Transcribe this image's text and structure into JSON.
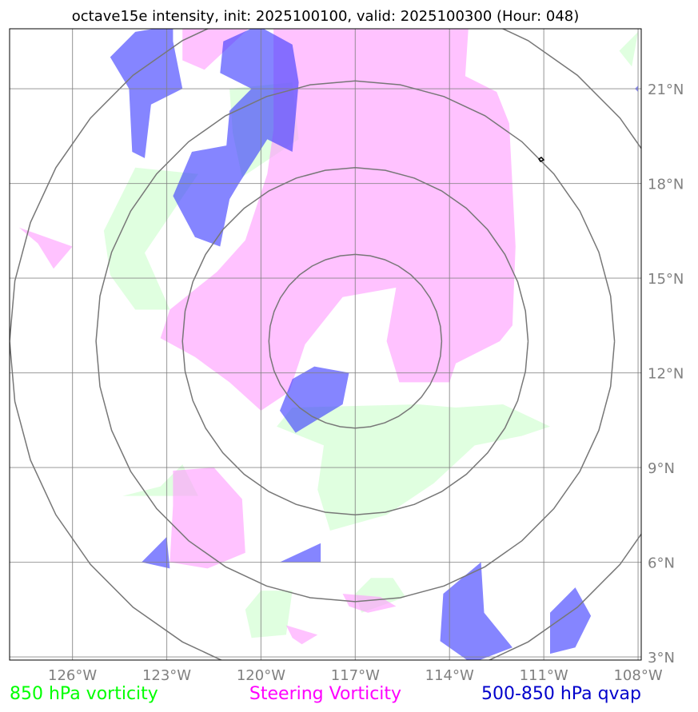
{
  "chart_data": {
    "type": "map",
    "title": "octave15e intensity, init: 2025100100, valid: 2025100300 (Hour: 048)",
    "lon_range": [
      -128.0,
      -107.9
    ],
    "lat_range": [
      2.9,
      22.9
    ],
    "lon_ticks": [
      {
        "value": -126,
        "label": "126°W"
      },
      {
        "value": -123,
        "label": "123°W"
      },
      {
        "value": -120,
        "label": "120°W"
      },
      {
        "value": -117,
        "label": "117°W"
      },
      {
        "value": -114,
        "label": "114°W"
      },
      {
        "value": -111,
        "label": "111°W"
      },
      {
        "value": -108,
        "label": "108°W"
      }
    ],
    "lat_ticks": [
      {
        "value": 3,
        "label": "3°N"
      },
      {
        "value": 6,
        "label": "6°N"
      },
      {
        "value": 9,
        "label": "9°N"
      },
      {
        "value": 12,
        "label": "12°N"
      },
      {
        "value": 15,
        "label": "15°N"
      },
      {
        "value": 18,
        "label": "18°N"
      },
      {
        "value": 21,
        "label": "21°N"
      }
    ],
    "grid": true,
    "range_rings": {
      "center": [
        -117.0,
        13.0
      ],
      "radius_deg": [
        2.75,
        5.5,
        8.25,
        11.0
      ]
    },
    "legend": [
      {
        "label": "850 hPa vorticity",
        "color": "#00ff00"
      },
      {
        "label": "Steering Vorticity",
        "color": "#ff00ff"
      },
      {
        "label": "500-850 hPa qvap",
        "color": "#0000cc"
      }
    ],
    "layers": [
      {
        "field": "850 hPa vorticity",
        "color": "#ccffcc",
        "polygons": [
          [
            [
              -119.0,
              10.9
            ],
            [
              -115.0,
              11.0
            ],
            [
              -113.8,
              10.9
            ],
            [
              -112.3,
              11.0
            ],
            [
              -110.8,
              10.3
            ],
            [
              -111.7,
              10.0
            ],
            [
              -113.2,
              9.7
            ],
            [
              -114.5,
              8.5
            ],
            [
              -116.0,
              7.5
            ],
            [
              -117.8,
              7.0
            ],
            [
              -118.2,
              8.3
            ],
            [
              -118.0,
              9.7
            ],
            [
              -119.0,
              10.1
            ],
            [
              -119.5,
              10.3
            ]
          ],
          [
            [
              -121.0,
              21.0
            ],
            [
              -119.0,
              21.2
            ],
            [
              -118.8,
              19.4
            ],
            [
              -120.6,
              18.2
            ],
            [
              -120.9,
              19.6
            ]
          ],
          [
            [
              -124.0,
              18.5
            ],
            [
              -122.0,
              18.3
            ],
            [
              -123.7,
              15.8
            ],
            [
              -122.9,
              14.0
            ],
            [
              -124.0,
              14.0
            ],
            [
              -124.8,
              15.1
            ],
            [
              -125.0,
              16.5
            ]
          ],
          [
            [
              -122.5,
              9.1
            ],
            [
              -123.2,
              8.4
            ],
            [
              -124.4,
              8.1
            ],
            [
              -122.0,
              8.1
            ]
          ],
          [
            [
              -116.5,
              5.5
            ],
            [
              -115.8,
              5.5
            ],
            [
              -115.4,
              4.9
            ],
            [
              -116.8,
              4.4
            ],
            [
              -117.0,
              5.0
            ]
          ],
          [
            [
              -119.0,
              5.1
            ],
            [
              -120.0,
              5.1
            ],
            [
              -120.5,
              4.5
            ],
            [
              -120.3,
              3.6
            ],
            [
              -119.2,
              3.7
            ]
          ],
          [
            [
              -108.0,
              22.8
            ],
            [
              -108.6,
              22.2
            ],
            [
              -108.2,
              21.7
            ]
          ]
        ]
      },
      {
        "field": "Steering Vorticity",
        "color": "#ff99ff",
        "polygons": [
          [
            [
              -119.6,
              22.9
            ],
            [
              -113.4,
              22.9
            ],
            [
              -113.5,
              21.4
            ],
            [
              -112.5,
              20.9
            ],
            [
              -112.1,
              19.9
            ],
            [
              -111.9,
              16.0
            ],
            [
              -112.0,
              13.5
            ],
            [
              -112.4,
              13.0
            ],
            [
              -113.8,
              12.3
            ],
            [
              -114.0,
              11.7
            ],
            [
              -115.6,
              11.7
            ],
            [
              -116.0,
              13.0
            ],
            [
              -115.7,
              14.7
            ],
            [
              -117.4,
              14.4
            ],
            [
              -118.6,
              12.9
            ],
            [
              -119.1,
              11.4
            ],
            [
              -120.0,
              10.8
            ],
            [
              -121.0,
              11.7
            ],
            [
              -122.1,
              12.5
            ],
            [
              -123.2,
              13.1
            ],
            [
              -122.9,
              14.0
            ],
            [
              -121.4,
              15.2
            ],
            [
              -120.5,
              16.2
            ],
            [
              -119.8,
              18.3
            ],
            [
              -119.6,
              19.7
            ]
          ],
          [
            [
              -122.5,
              22.9
            ],
            [
              -120.4,
              22.9
            ],
            [
              -121.8,
              21.6
            ],
            [
              -122.5,
              21.9
            ]
          ],
          [
            [
              -127.7,
              16.6
            ],
            [
              -127.1,
              16.1
            ],
            [
              -126.6,
              15.3
            ],
            [
              -126.0,
              16.0
            ]
          ],
          [
            [
              -122.8,
              8.9
            ],
            [
              -121.5,
              9.0
            ],
            [
              -120.6,
              8.0
            ],
            [
              -120.5,
              6.3
            ],
            [
              -121.7,
              5.8
            ],
            [
              -122.9,
              6.0
            ],
            [
              -122.8,
              7.8
            ]
          ],
          [
            [
              -117.4,
              5.0
            ],
            [
              -116.2,
              4.9
            ],
            [
              -115.7,
              4.6
            ],
            [
              -116.6,
              4.4
            ],
            [
              -117.2,
              4.6
            ]
          ],
          [
            [
              -119.2,
              4.0
            ],
            [
              -118.2,
              3.7
            ],
            [
              -118.7,
              3.4
            ],
            [
              -119.0,
              3.6
            ]
          ]
        ]
      },
      {
        "field": "500-850 hPa qvap",
        "color": "#3333ff",
        "polygons": [
          [
            [
              -122.8,
              23.0
            ],
            [
              -124.0,
              22.8
            ],
            [
              -124.8,
              22.0
            ],
            [
              -124.2,
              21.0
            ],
            [
              -124.1,
              19.0
            ],
            [
              -123.7,
              18.8
            ],
            [
              -123.5,
              20.5
            ],
            [
              -122.5,
              21.0
            ],
            [
              -122.8,
              22.5
            ]
          ],
          [
            [
              -120.1,
              23.0
            ],
            [
              -119.0,
              22.4
            ],
            [
              -118.8,
              21.2
            ],
            [
              -119.0,
              19.0
            ],
            [
              -119.8,
              19.4
            ],
            [
              -120.7,
              18.0
            ],
            [
              -121.0,
              17.5
            ],
            [
              -121.3,
              16.0
            ],
            [
              -122.1,
              16.3
            ],
            [
              -122.8,
              17.6
            ],
            [
              -122.2,
              19.0
            ],
            [
              -121.1,
              19.2
            ],
            [
              -121.0,
              20.3
            ],
            [
              -120.3,
              21.0
            ],
            [
              -121.3,
              21.5
            ],
            [
              -121.2,
              22.5
            ]
          ],
          [
            [
              -118.3,
              12.2
            ],
            [
              -117.2,
              12.0
            ],
            [
              -117.4,
              11.0
            ],
            [
              -118.9,
              10.1
            ],
            [
              -119.4,
              10.8
            ],
            [
              -119.0,
              11.8
            ]
          ],
          [
            [
              -113.0,
              6.0
            ],
            [
              -112.9,
              4.4
            ],
            [
              -112.0,
              3.3
            ],
            [
              -113.3,
              2.8
            ],
            [
              -114.3,
              3.5
            ],
            [
              -114.2,
              5.0
            ]
          ],
          [
            [
              -110.0,
              5.2
            ],
            [
              -110.8,
              4.4
            ],
            [
              -110.8,
              3.1
            ],
            [
              -110.0,
              3.3
            ],
            [
              -109.5,
              4.3
            ]
          ],
          [
            [
              -123.0,
              6.8
            ],
            [
              -123.8,
              6.0
            ],
            [
              -122.9,
              5.8
            ]
          ],
          [
            [
              -118.1,
              6.6
            ],
            [
              -119.4,
              6.0
            ],
            [
              -118.1,
              6.0
            ]
          ],
          [
            [
              -108.0,
              21.1
            ],
            [
              -108.1,
              21.0
            ],
            [
              -108.0,
              20.9
            ]
          ]
        ]
      }
    ]
  }
}
